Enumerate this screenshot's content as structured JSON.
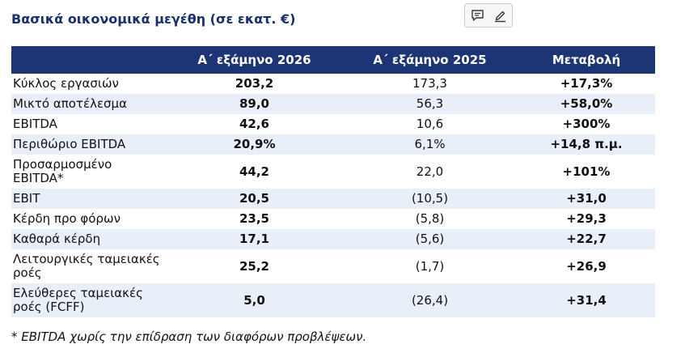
{
  "title": "Βασικά οικονομικά μεγέθη (σε εκατ. €)",
  "toolbar": {
    "icons": [
      "comment-icon",
      "edit-icon"
    ]
  },
  "table": {
    "headers": [
      "",
      "Α΄ εξάμηνο 2026",
      "Α΄ εξάμηνο 2025",
      "Μεταβολή"
    ],
    "rows": [
      {
        "label": "Κύκλος εργασιών",
        "cur": "203,2",
        "prev": "173,3",
        "chg": "+17,3%"
      },
      {
        "label": "Μικτό αποτέλεσμα",
        "cur": "89,0",
        "prev": "56,3",
        "chg": "+58,0%"
      },
      {
        "label": "EBITDA",
        "cur": "42,6",
        "prev": "10,6",
        "chg": "+300%"
      },
      {
        "label": "Περιθώριο EBITDA",
        "cur": "20,9%",
        "prev": "6,1%",
        "chg": "+14,8 π.μ."
      },
      {
        "label": "Προσαρμοσμένο EBITDA*",
        "cur": "44,2",
        "prev": "22,0",
        "chg": "+101%"
      },
      {
        "label": "EBIT",
        "cur": "20,5",
        "prev": "(10,5)",
        "chg": "+31,0"
      },
      {
        "label": "Κέρδη προ φόρων",
        "cur": "23,5",
        "prev": "(5,8)",
        "chg": "+29,3"
      },
      {
        "label": "Καθαρά κέρδη",
        "cur": "17,1",
        "prev": "(5,6)",
        "chg": "+22,7"
      },
      {
        "label": "Λειτουργικές ταμειακές ροές",
        "cur": "25,2",
        "prev": "(1,7)",
        "chg": "+26,9"
      },
      {
        "label": "Ελεύθερες ταμειακές ροές (FCFF)",
        "cur": "5,0",
        "prev": "(26,4)",
        "chg": "+31,4"
      }
    ]
  },
  "footnote": "* EBITDA χωρίς την επίδραση των διαφόρων προβλέψεων.",
  "colors": {
    "header_bg": "#1e3575",
    "title": "#1a2f6b",
    "stripe": "#e9eff8"
  }
}
